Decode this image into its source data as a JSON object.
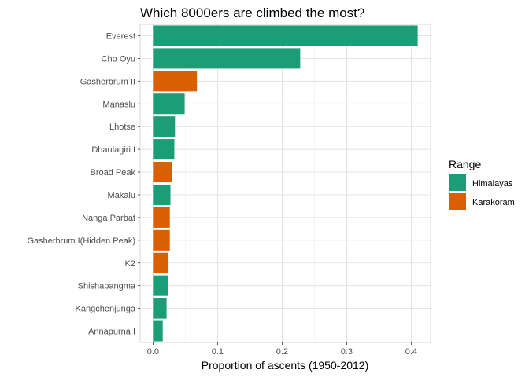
{
  "chart_data": {
    "type": "bar",
    "orientation": "horizontal",
    "title": "Which 8000ers are climbed the most?",
    "xlabel": "Proportion of ascents (1950-2012)",
    "ylabel": "",
    "xlim": [
      -0.02,
      0.43
    ],
    "xticks": [
      "0.0",
      "0.1",
      "0.2",
      "0.3",
      "0.4"
    ],
    "grid": true,
    "legend": {
      "title": "Range",
      "position": "right",
      "entries": [
        {
          "label": "Himalayas",
          "color": "#1b9e77"
        },
        {
          "label": "Karakoram",
          "color": "#d95f02"
        }
      ]
    },
    "categories": [
      "Everest",
      "Cho Oyu",
      "Gasherbrum II",
      "Manaslu",
      "Lhotse",
      "Dhaulagiri I",
      "Broad Peak",
      "Makalu",
      "Nanga Parbat",
      "Gasherbrum I(Hidden Peak)",
      "K2",
      "Shishapangma",
      "Kangchenjunga",
      "Annapurna I"
    ],
    "values": [
      0.41,
      0.228,
      0.068,
      0.049,
      0.034,
      0.033,
      0.03,
      0.027,
      0.026,
      0.026,
      0.024,
      0.023,
      0.021,
      0.015
    ],
    "range": [
      "Himalayas",
      "Himalayas",
      "Karakoram",
      "Himalayas",
      "Himalayas",
      "Himalayas",
      "Karakoram",
      "Himalayas",
      "Karakoram",
      "Karakoram",
      "Karakoram",
      "Himalayas",
      "Himalayas",
      "Himalayas"
    ]
  }
}
